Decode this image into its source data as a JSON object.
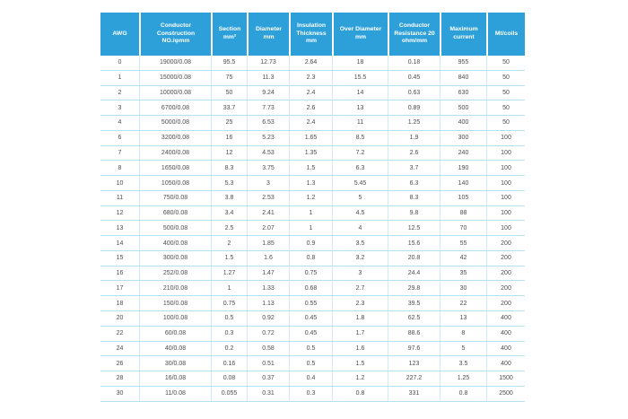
{
  "colors": {
    "header_bg": "#2ea0d9",
    "header_text": "#ffffff",
    "body_text": "#4d4d4d",
    "row_line": "#b5e0f1",
    "col_line": "#cdeaf6",
    "page_bg": "#ffffff"
  },
  "chart_data": {
    "type": "table",
    "columns": [
      "AWG",
      "Conductor Construction NO./φmm",
      "Section mm²",
      "Diameter mm",
      "Insulation Thickness mm",
      "Over Diameter mm",
      "Conductor Resistance 20 ohm/mm",
      "Maximum current",
      "Mt/coils"
    ],
    "header_lines": [
      [
        "AWG"
      ],
      [
        "Conductor",
        "Construction",
        "NO./φmm"
      ],
      [
        "Section",
        "mm²"
      ],
      [
        "Diameter",
        "mm"
      ],
      [
        "Insulation",
        "Thickness",
        "mm"
      ],
      [
        "Over Diameter",
        "mm"
      ],
      [
        "Conductor",
        "Resistance 20",
        "ohm/mm"
      ],
      [
        "Maximum",
        "current"
      ],
      [
        "Mt/coils"
      ]
    ],
    "rows": [
      [
        "0",
        "19000/0.08",
        "95.5",
        "12.73",
        "2.64",
        "18",
        "0.18",
        "955",
        "50"
      ],
      [
        "1",
        "15000/0.08",
        "75",
        "11.3",
        "2.3",
        "15.5",
        "0.45",
        "840",
        "50"
      ],
      [
        "2",
        "10000/0.08",
        "50",
        "9.24",
        "2.4",
        "14",
        "0.63",
        "630",
        "50"
      ],
      [
        "3",
        "6700/0.08",
        "33.7",
        "7.73",
        "2.6",
        "13",
        "0.89",
        "500",
        "50"
      ],
      [
        "4",
        "5000/0.08",
        "25",
        "6.53",
        "2.4",
        "11",
        "1.25",
        "400",
        "50"
      ],
      [
        "6",
        "3200/0.08",
        "16",
        "5.23",
        "1.65",
        "8.5",
        "1.9",
        "300",
        "100"
      ],
      [
        "7",
        "2400/0.08",
        "12",
        "4.53",
        "1.35",
        "7.2",
        "2.6",
        "240",
        "100"
      ],
      [
        "8",
        "1650/0.08",
        "8.3",
        "3.75",
        "1.5",
        "6.3",
        "3.7",
        "190",
        "100"
      ],
      [
        "10",
        "1050/0.08",
        "5.3",
        "3",
        "1.3",
        "5.45",
        "6.3",
        "140",
        "100"
      ],
      [
        "11",
        "750/0.08",
        "3.8",
        "2.53",
        "1.2",
        "5",
        "8.3",
        "105",
        "100"
      ],
      [
        "12",
        "680/0.08",
        "3.4",
        "2.41",
        "1",
        "4.5",
        "9.8",
        "88",
        "100"
      ],
      [
        "13",
        "500/0.08",
        "2.5",
        "2.07",
        "1",
        "4",
        "12.5",
        "70",
        "100"
      ],
      [
        "14",
        "400/0.08",
        "2",
        "1.85",
        "0.9",
        "3.5",
        "15.6",
        "55",
        "200"
      ],
      [
        "15",
        "300/0.08",
        "1.5",
        "1.6",
        "0.8",
        "3.2",
        "20.8",
        "42",
        "200"
      ],
      [
        "16",
        "252/0.08",
        "1.27",
        "1.47",
        "0.75",
        "3",
        "24.4",
        "35",
        "200"
      ],
      [
        "17",
        "210/0.08",
        "1",
        "1.33",
        "0.68",
        "2.7",
        "29.8",
        "30",
        "200"
      ],
      [
        "18",
        "150/0.08",
        "0.75",
        "1.13",
        "0.55",
        "2.3",
        "39.5",
        "22",
        "200"
      ],
      [
        "20",
        "100/0.08",
        "0.5",
        "0.92",
        "0.45",
        "1.8",
        "62.5",
        "13",
        "400"
      ],
      [
        "22",
        "60/0.08",
        "0.3",
        "0.72",
        "0.45",
        "1.7",
        "88.6",
        "8",
        "400"
      ],
      [
        "24",
        "40/0.08",
        "0.2",
        "0.58",
        "0.5",
        "1.6",
        "97.6",
        "5",
        "400"
      ],
      [
        "26",
        "30/0.08",
        "0.16",
        "0.51",
        "0.5",
        "1.5",
        "123",
        "3.5",
        "400"
      ],
      [
        "28",
        "16/0.08",
        "0.08",
        "0.37",
        "0.4",
        "1.2",
        "227.2",
        "1.25",
        "1500"
      ],
      [
        "30",
        "11/0.08",
        "0.055",
        "0.31",
        "0.3",
        "0.8",
        "331",
        "0.8",
        "2500"
      ]
    ]
  }
}
